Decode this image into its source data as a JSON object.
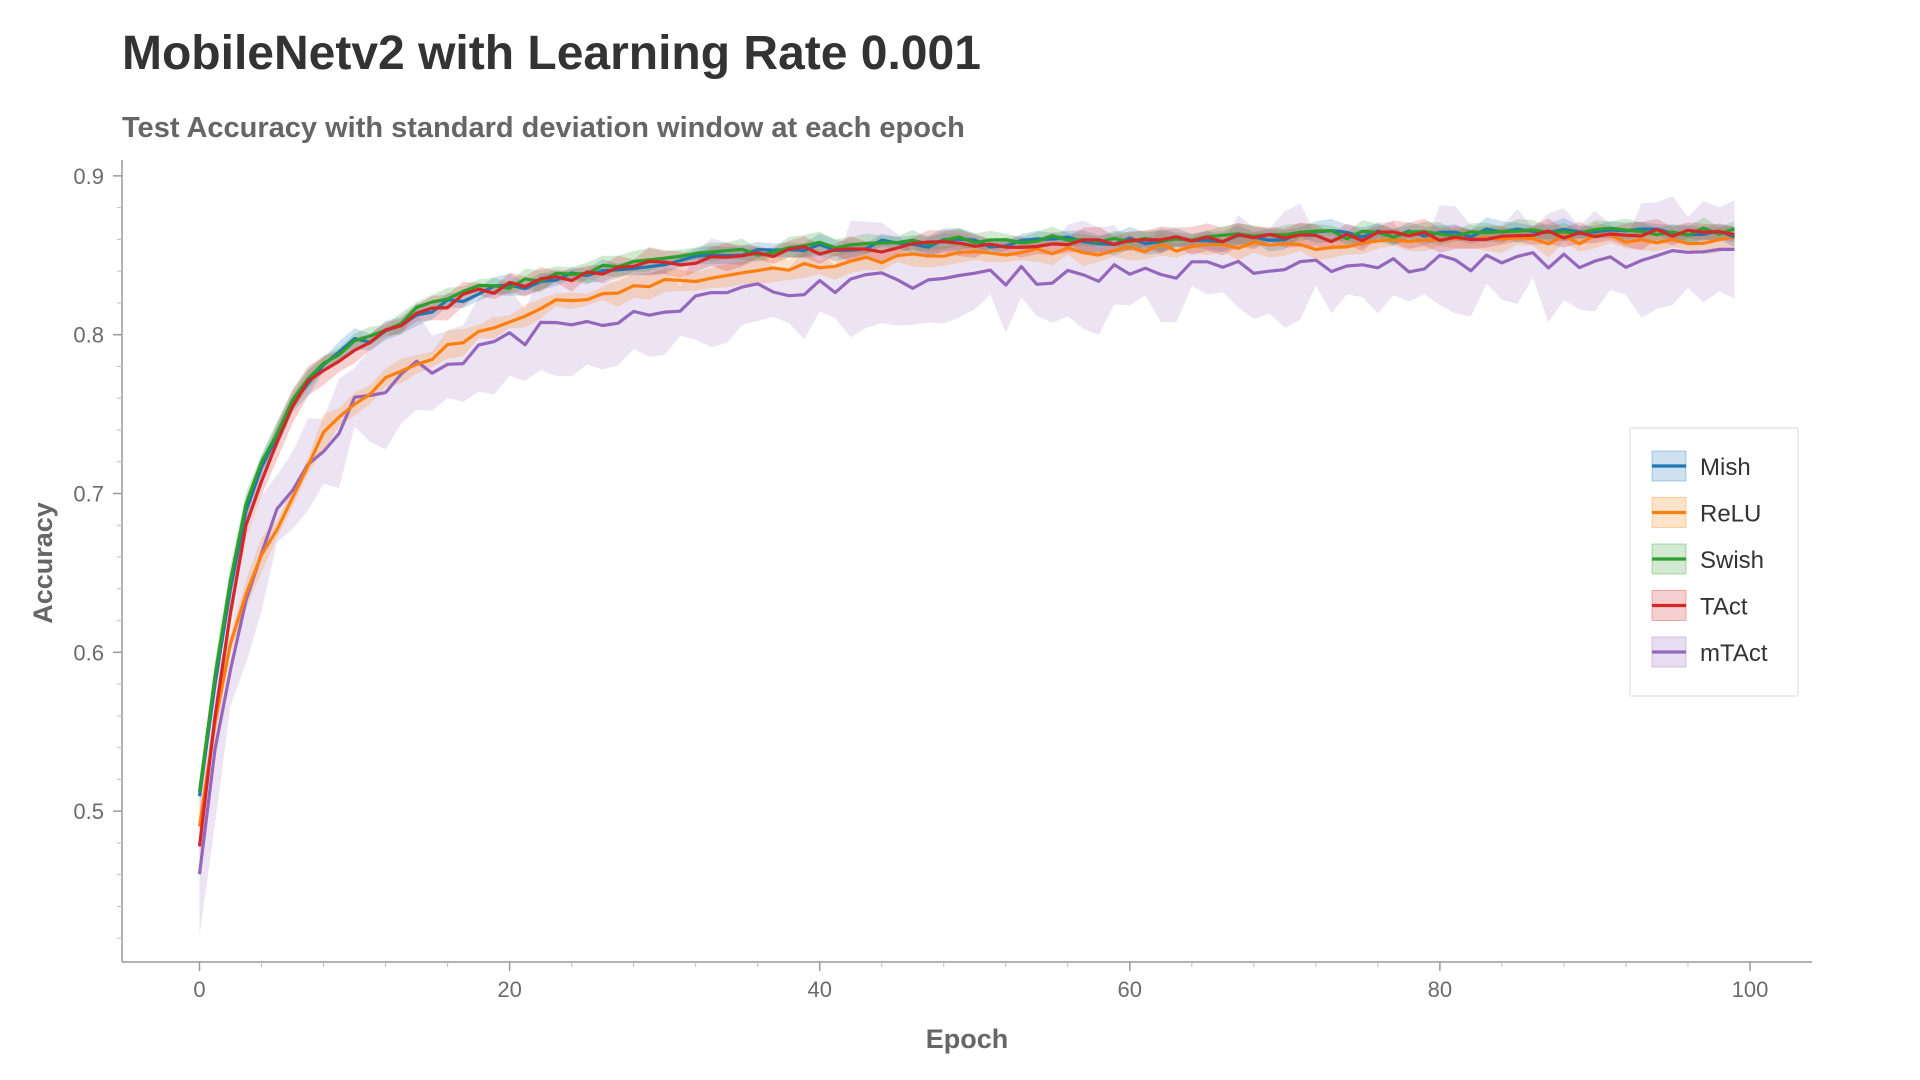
{
  "chart_data": {
    "type": "line",
    "title": "MobileNetv2 with Learning Rate 0.001",
    "subtitle": "Test Accuracy with standard deviation window at each epoch",
    "xlabel": "Epoch",
    "ylabel": "Accuracy",
    "xlim": [
      -5,
      104
    ],
    "ylim": [
      0.405,
      0.91
    ],
    "xticks": [
      0,
      20,
      40,
      60,
      80,
      100
    ],
    "yticks": [
      0.5,
      0.6,
      0.7,
      0.8,
      0.9
    ],
    "xtick_labels": [
      "0",
      "20",
      "40",
      "60",
      "80",
      "100"
    ],
    "ytick_labels": [
      "0.5",
      "0.6",
      "0.7",
      "0.8",
      "0.9"
    ],
    "grid": false,
    "legend_position": "right",
    "x_range": [
      0,
      99
    ],
    "series": [
      {
        "name": "Mish",
        "color": "#1f77b4",
        "key": [
          [
            0,
            0.51
          ],
          [
            1,
            0.58
          ],
          [
            2,
            0.64
          ],
          [
            3,
            0.69
          ],
          [
            4,
            0.715
          ],
          [
            5,
            0.735
          ],
          [
            6,
            0.755
          ],
          [
            7,
            0.77
          ],
          [
            8,
            0.78
          ],
          [
            9,
            0.788
          ],
          [
            10,
            0.795
          ],
          [
            12,
            0.8
          ],
          [
            14,
            0.81
          ],
          [
            16,
            0.82
          ],
          [
            18,
            0.826
          ],
          [
            20,
            0.83
          ],
          [
            25,
            0.838
          ],
          [
            30,
            0.845
          ],
          [
            35,
            0.85
          ],
          [
            40,
            0.855
          ],
          [
            45,
            0.857
          ],
          [
            50,
            0.858
          ],
          [
            55,
            0.859
          ],
          [
            60,
            0.86
          ],
          [
            65,
            0.861
          ],
          [
            70,
            0.862
          ],
          [
            75,
            0.863
          ],
          [
            80,
            0.863
          ],
          [
            85,
            0.864
          ],
          [
            90,
            0.865
          ],
          [
            95,
            0.865
          ],
          [
            99,
            0.864
          ]
        ],
        "std": 0.005
      },
      {
        "name": "ReLU",
        "color": "#ff7f0e",
        "key": [
          [
            0,
            0.49
          ],
          [
            1,
            0.555
          ],
          [
            2,
            0.605
          ],
          [
            3,
            0.635
          ],
          [
            4,
            0.66
          ],
          [
            5,
            0.68
          ],
          [
            6,
            0.7
          ],
          [
            7,
            0.72
          ],
          [
            8,
            0.738
          ],
          [
            9,
            0.75
          ],
          [
            10,
            0.758
          ],
          [
            12,
            0.77
          ],
          [
            14,
            0.782
          ],
          [
            16,
            0.792
          ],
          [
            18,
            0.802
          ],
          [
            20,
            0.81
          ],
          [
            25,
            0.825
          ],
          [
            30,
            0.832
          ],
          [
            35,
            0.838
          ],
          [
            40,
            0.843
          ],
          [
            45,
            0.848
          ],
          [
            50,
            0.85
          ],
          [
            55,
            0.852
          ],
          [
            60,
            0.854
          ],
          [
            65,
            0.855
          ],
          [
            70,
            0.856
          ],
          [
            75,
            0.857
          ],
          [
            80,
            0.858
          ],
          [
            85,
            0.859
          ],
          [
            90,
            0.86
          ],
          [
            95,
            0.86
          ],
          [
            99,
            0.86
          ]
        ],
        "std": 0.006
      },
      {
        "name": "Swish",
        "color": "#2ca02c",
        "key": [
          [
            0,
            0.512
          ],
          [
            1,
            0.585
          ],
          [
            2,
            0.645
          ],
          [
            3,
            0.692
          ],
          [
            4,
            0.718
          ],
          [
            5,
            0.74
          ],
          [
            6,
            0.758
          ],
          [
            7,
            0.772
          ],
          [
            8,
            0.782
          ],
          [
            9,
            0.79
          ],
          [
            10,
            0.797
          ],
          [
            12,
            0.805
          ],
          [
            14,
            0.815
          ],
          [
            16,
            0.823
          ],
          [
            18,
            0.828
          ],
          [
            20,
            0.832
          ],
          [
            25,
            0.84
          ],
          [
            30,
            0.847
          ],
          [
            35,
            0.852
          ],
          [
            40,
            0.856
          ],
          [
            45,
            0.858
          ],
          [
            50,
            0.859
          ],
          [
            55,
            0.86
          ],
          [
            60,
            0.861
          ],
          [
            65,
            0.862
          ],
          [
            70,
            0.862
          ],
          [
            75,
            0.863
          ],
          [
            80,
            0.863
          ],
          [
            85,
            0.864
          ],
          [
            90,
            0.864
          ],
          [
            95,
            0.865
          ],
          [
            99,
            0.866
          ]
        ],
        "std": 0.005
      },
      {
        "name": "TAct",
        "color": "#d62728",
        "key": [
          [
            0,
            0.478
          ],
          [
            1,
            0.56
          ],
          [
            2,
            0.625
          ],
          [
            3,
            0.68
          ],
          [
            4,
            0.708
          ],
          [
            5,
            0.73
          ],
          [
            6,
            0.755
          ],
          [
            7,
            0.768
          ],
          [
            8,
            0.778
          ],
          [
            9,
            0.786
          ],
          [
            10,
            0.793
          ],
          [
            12,
            0.802
          ],
          [
            14,
            0.812
          ],
          [
            16,
            0.82
          ],
          [
            18,
            0.826
          ],
          [
            20,
            0.83
          ],
          [
            25,
            0.838
          ],
          [
            30,
            0.845
          ],
          [
            35,
            0.85
          ],
          [
            40,
            0.853
          ],
          [
            45,
            0.855
          ],
          [
            50,
            0.857
          ],
          [
            55,
            0.858
          ],
          [
            60,
            0.859
          ],
          [
            65,
            0.86
          ],
          [
            70,
            0.861
          ],
          [
            75,
            0.862
          ],
          [
            80,
            0.862
          ],
          [
            85,
            0.863
          ],
          [
            90,
            0.864
          ],
          [
            95,
            0.864
          ],
          [
            99,
            0.866
          ]
        ],
        "std": 0.006
      },
      {
        "name": "mTAct",
        "color": "#9467bd",
        "key": [
          [
            0,
            0.46
          ],
          [
            1,
            0.54
          ],
          [
            2,
            0.59
          ],
          [
            3,
            0.63
          ],
          [
            4,
            0.66
          ],
          [
            5,
            0.685
          ],
          [
            6,
            0.705
          ],
          [
            7,
            0.72
          ],
          [
            8,
            0.73
          ],
          [
            9,
            0.742
          ],
          [
            10,
            0.755
          ],
          [
            12,
            0.768
          ],
          [
            14,
            0.778
          ],
          [
            16,
            0.782
          ],
          [
            18,
            0.79
          ],
          [
            20,
            0.797
          ],
          [
            25,
            0.81
          ],
          [
            30,
            0.818
          ],
          [
            35,
            0.826
          ],
          [
            40,
            0.832
          ],
          [
            45,
            0.834
          ],
          [
            50,
            0.836
          ],
          [
            55,
            0.838
          ],
          [
            60,
            0.84
          ],
          [
            65,
            0.841
          ],
          [
            70,
            0.842
          ],
          [
            75,
            0.843
          ],
          [
            80,
            0.845
          ],
          [
            85,
            0.846
          ],
          [
            90,
            0.847
          ],
          [
            95,
            0.848
          ],
          [
            99,
            0.852
          ]
        ],
        "std": 0.025
      }
    ]
  }
}
